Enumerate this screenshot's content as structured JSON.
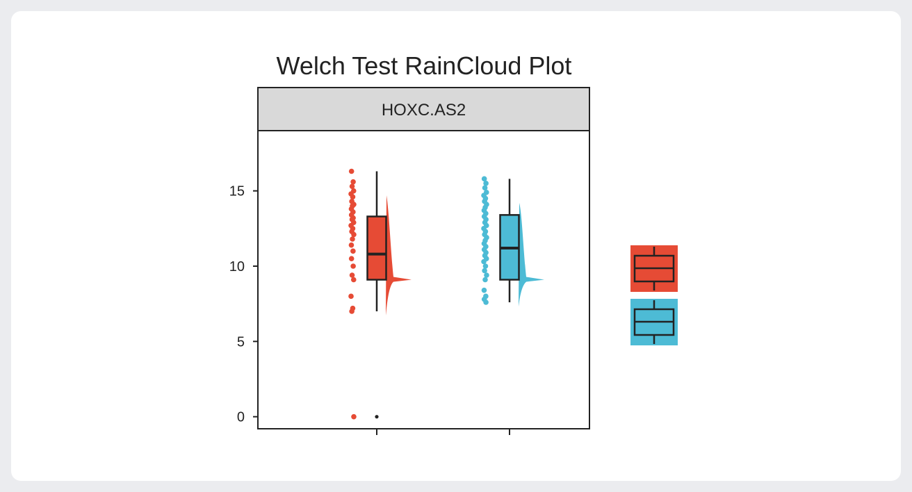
{
  "chart_data": {
    "type": "raincloud",
    "title": "Welch Test RainCloud Plot",
    "facet_label": "HOXC.AS2",
    "xlabel": "",
    "ylabel": "",
    "ylim": [
      -0.8,
      19
    ],
    "yticks": [
      0,
      5,
      10,
      15
    ],
    "grid": false,
    "legend_position": "right",
    "groups": [
      {
        "color": "#e64b35",
        "box": {
          "min": 7.0,
          "q1": 9.1,
          "median": 10.8,
          "q3": 13.3,
          "max": 16.3
        },
        "outliers": [
          0
        ],
        "points": [
          16.3,
          15.6,
          15.3,
          15.0,
          14.8,
          14.6,
          14.3,
          14.1,
          14.0,
          13.8,
          13.6,
          13.4,
          13.2,
          13.1,
          12.9,
          12.7,
          12.5,
          12.3,
          12.1,
          11.8,
          11.4,
          11.0,
          10.5,
          10.0,
          9.4,
          9.1,
          8.0,
          7.2,
          7.0,
          0
        ]
      },
      {
        "color": "#4dbbd5",
        "box": {
          "min": 7.6,
          "q1": 9.1,
          "median": 11.2,
          "q3": 13.4,
          "max": 15.8
        },
        "outliers": [],
        "points": [
          15.8,
          15.5,
          15.2,
          14.9,
          14.7,
          14.5,
          14.3,
          14.1,
          13.9,
          13.7,
          13.5,
          13.3,
          13.1,
          12.9,
          12.7,
          12.5,
          12.3,
          12.1,
          11.9,
          11.7,
          11.5,
          11.3,
          11.1,
          10.9,
          10.7,
          10.5,
          10.3,
          10.0,
          9.7,
          9.4,
          9.1,
          8.4,
          8.0,
          7.8,
          7.6
        ]
      }
    ]
  }
}
